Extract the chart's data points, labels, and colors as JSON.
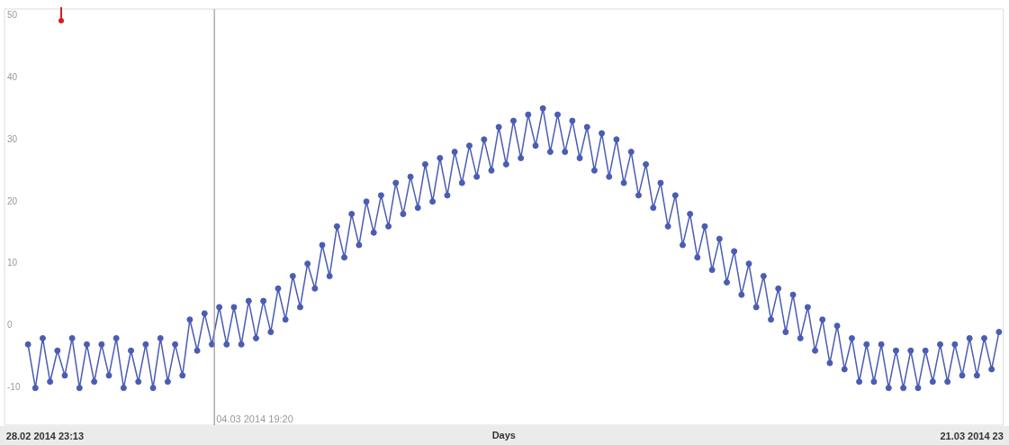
{
  "chart_data": {
    "type": "line",
    "xlabel": "Days",
    "marker": "circle",
    "line_style": "solid",
    "xlim": [
      "2014-02-28T01:13",
      "2014-03-22T16:19"
    ],
    "xticks": [
      {
        "value": "2014-02-28T23:13",
        "label": "28.02 2014 23:13"
      },
      {
        "value": "2014-03-21T23:13",
        "label": "21.03 2014 23"
      }
    ],
    "ylim": [
      -16,
      51
    ],
    "yticks": [
      -10,
      0,
      10,
      20,
      30,
      40,
      50
    ],
    "ref_lines": [
      {
        "axis": "x",
        "value": "2014-03-04T19:20",
        "label": "04.03 2014 19:20",
        "color": "#999999"
      }
    ],
    "x": [
      "2014-02-28T14:00",
      "2014-02-28T18:00",
      "2014-02-28T22:00",
      "2014-03-01T02:00",
      "2014-03-01T06:00",
      "2014-03-01T10:00",
      "2014-03-01T14:00",
      "2014-03-01T18:00",
      "2014-03-01T22:00",
      "2014-03-02T02:00",
      "2014-03-02T06:00",
      "2014-03-02T10:00",
      "2014-03-02T14:00",
      "2014-03-02T18:00",
      "2014-03-02T22:00",
      "2014-03-03T02:00",
      "2014-03-03T06:00",
      "2014-03-03T10:00",
      "2014-03-03T14:00",
      "2014-03-03T18:00",
      "2014-03-03T22:00",
      "2014-03-04T02:00",
      "2014-03-04T06:00",
      "2014-03-04T10:00",
      "2014-03-04T14:00",
      "2014-03-04T18:00",
      "2014-03-04T22:00",
      "2014-03-05T02:00",
      "2014-03-05T06:00",
      "2014-03-05T10:00",
      "2014-03-05T14:00",
      "2014-03-05T18:00",
      "2014-03-05T22:00",
      "2014-03-06T02:00",
      "2014-03-06T06:00",
      "2014-03-06T10:00",
      "2014-03-06T14:00",
      "2014-03-06T18:00",
      "2014-03-06T22:00",
      "2014-03-07T02:00",
      "2014-03-07T06:00",
      "2014-03-07T10:00",
      "2014-03-07T14:00",
      "2014-03-07T18:00",
      "2014-03-07T22:00",
      "2014-03-08T02:00",
      "2014-03-08T06:00",
      "2014-03-08T10:00",
      "2014-03-08T14:00",
      "2014-03-08T18:00",
      "2014-03-08T22:00",
      "2014-03-09T02:00",
      "2014-03-09T06:00",
      "2014-03-09T10:00",
      "2014-03-09T14:00",
      "2014-03-09T18:00",
      "2014-03-09T22:00",
      "2014-03-10T02:00",
      "2014-03-10T06:00",
      "2014-03-10T10:00",
      "2014-03-10T14:00",
      "2014-03-10T18:00",
      "2014-03-10T22:00",
      "2014-03-11T02:00",
      "2014-03-11T06:00",
      "2014-03-11T10:00",
      "2014-03-11T14:00",
      "2014-03-11T18:00",
      "2014-03-11T22:00",
      "2014-03-12T02:00",
      "2014-03-12T06:00",
      "2014-03-12T10:00",
      "2014-03-12T14:00",
      "2014-03-12T18:00",
      "2014-03-12T22:00",
      "2014-03-13T02:00",
      "2014-03-13T06:00",
      "2014-03-13T10:00",
      "2014-03-13T14:00",
      "2014-03-13T18:00",
      "2014-03-13T22:00",
      "2014-03-14T02:00",
      "2014-03-14T06:00",
      "2014-03-14T10:00",
      "2014-03-14T14:00",
      "2014-03-14T18:00",
      "2014-03-14T22:00",
      "2014-03-15T02:00",
      "2014-03-15T06:00",
      "2014-03-15T10:00",
      "2014-03-15T14:00",
      "2014-03-15T18:00",
      "2014-03-15T22:00",
      "2014-03-16T02:00",
      "2014-03-16T06:00",
      "2014-03-16T10:00",
      "2014-03-16T14:00",
      "2014-03-16T18:00",
      "2014-03-16T22:00",
      "2014-03-17T02:00",
      "2014-03-17T06:00",
      "2014-03-17T10:00",
      "2014-03-17T14:00",
      "2014-03-17T18:00",
      "2014-03-17T22:00",
      "2014-03-18T02:00",
      "2014-03-18T06:00",
      "2014-03-18T10:00",
      "2014-03-18T14:00",
      "2014-03-18T18:00",
      "2014-03-18T22:00",
      "2014-03-19T02:00",
      "2014-03-19T06:00",
      "2014-03-19T10:00",
      "2014-03-19T14:00",
      "2014-03-19T18:00",
      "2014-03-19T22:00",
      "2014-03-20T02:00",
      "2014-03-20T06:00",
      "2014-03-20T10:00",
      "2014-03-20T14:00",
      "2014-03-20T18:00",
      "2014-03-20T22:00",
      "2014-03-21T02:00",
      "2014-03-21T06:00",
      "2014-03-21T10:00",
      "2014-03-21T14:00",
      "2014-03-21T18:00",
      "2014-03-21T22:00",
      "2014-03-22T02:00",
      "2014-03-22T06:00",
      "2014-03-22T10:00",
      "2014-03-22T14:00"
    ],
    "series": [
      {
        "color": "#4a5cb4",
        "values": [
          -3,
          -10,
          -2,
          -9,
          -4,
          -8,
          -2,
          -10,
          -3,
          -9,
          -3,
          -8,
          -2,
          -10,
          -4,
          -9,
          -3,
          -10,
          -2,
          -9,
          -3,
          -8,
          1,
          -4,
          2,
          -3,
          3,
          -3,
          3,
          -3,
          4,
          -2,
          4,
          -1,
          6,
          1,
          8,
          3,
          10,
          6,
          13,
          8,
          16,
          11,
          18,
          13,
          20,
          15,
          21,
          16,
          23,
          18,
          24,
          19,
          26,
          20,
          27,
          21,
          28,
          23,
          29,
          24,
          30,
          25,
          32,
          26,
          33,
          27,
          34,
          29,
          35,
          28,
          34,
          28,
          33,
          27,
          32,
          25,
          31,
          24,
          30,
          23,
          28,
          21,
          26,
          19,
          23,
          16,
          21,
          13,
          18,
          11,
          16,
          9,
          14,
          7,
          12,
          5,
          10,
          3,
          8,
          1,
          6,
          -1,
          5,
          -2,
          3,
          -4,
          1,
          -6,
          0,
          -7,
          -2,
          -9,
          -3,
          -9,
          -3,
          -10,
          -4,
          -10,
          -4,
          -10,
          -4,
          -9,
          -3,
          -9,
          -3,
          -8,
          -2,
          -8,
          -2,
          -7,
          -1
        ]
      }
    ]
  }
}
